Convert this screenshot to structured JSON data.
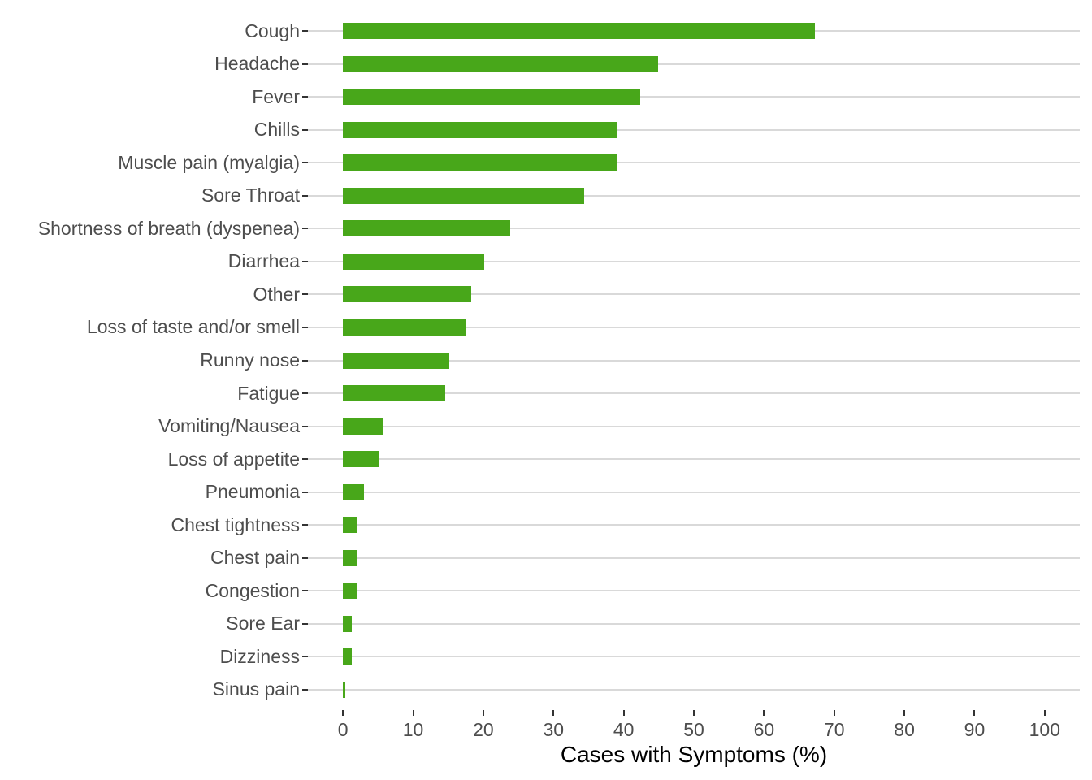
{
  "chart_data": {
    "type": "bar",
    "orientation": "horizontal",
    "title": "",
    "xlabel": "Cases with Symptoms (%)",
    "ylabel": "",
    "categories": [
      "Cough",
      "Headache",
      "Fever",
      "Chills",
      "Muscle pain (myalgia)",
      "Sore Throat",
      "Shortness of breath (dyspenea)",
      "Diarrhea",
      "Other",
      "Loss of taste and/or smell",
      "Runny nose",
      "Fatigue",
      "Vomiting/Nausea",
      "Loss of appetite",
      "Pneumonia",
      "Chest tightness",
      "Chest pain",
      "Congestion",
      "Sore Ear",
      "Dizziness",
      "Sinus pain"
    ],
    "values": [
      67.2,
      44.9,
      42.4,
      39.0,
      39.0,
      34.4,
      23.8,
      20.1,
      18.3,
      17.6,
      15.2,
      14.6,
      5.6,
      5.2,
      3.0,
      1.9,
      1.9,
      1.9,
      1.2,
      1.2,
      0.3
    ],
    "xlim": [
      0,
      100
    ],
    "x_ticks": [
      0,
      10,
      20,
      30,
      40,
      50,
      60,
      70,
      80,
      90,
      100
    ],
    "grid": "horizontal major gridlines only",
    "legend": "none",
    "colors": {
      "bar": "#48a71a",
      "gridline": "#d9d9d9",
      "tick": "#333333",
      "axis_text": "#4d4d4d",
      "axis_title": "#000000",
      "background": "#ffffff"
    }
  }
}
